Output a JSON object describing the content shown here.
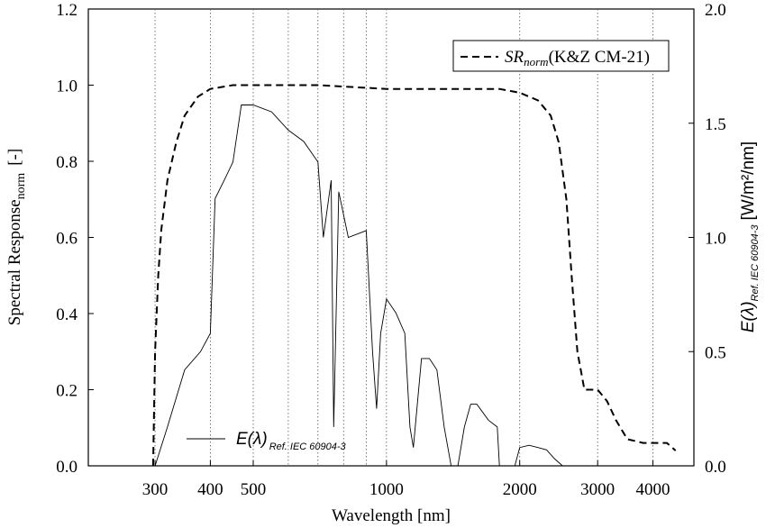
{
  "chart_data": {
    "type": "line",
    "x_log": true,
    "xlabel": "Wavelength [nm]",
    "ylabel": "Spectral Response",
    "ylabel_sub": "norm",
    "ylabel_unit": "[-]",
    "y2label": "E(λ)",
    "y2label_sub": "Ref. IEC 60904-3",
    "y2label_unit": "[W/m²/nm]",
    "xlim": [
      212,
      4950
    ],
    "xticks": [
      300,
      400,
      500,
      1000,
      2000,
      3000,
      4000
    ],
    "x_grid_lines": [
      300,
      400,
      500,
      600,
      700,
      800,
      900,
      1000,
      2000,
      3000,
      4000
    ],
    "ylim": [
      0,
      1.2
    ],
    "yticks": [
      {
        "value": 0,
        "label": "0.0"
      },
      {
        "value": 0.2,
        "label": "0.2"
      },
      {
        "value": 0.4,
        "label": "0.4"
      },
      {
        "value": 0.6,
        "label": "0.6"
      },
      {
        "value": 0.8,
        "label": "0.8"
      },
      {
        "value": 1,
        "label": "1.0"
      },
      {
        "value": 1.2,
        "label": "1.2"
      }
    ],
    "y2lim": [
      0,
      2
    ],
    "y2ticks": [
      {
        "value": 0,
        "label": "0.0"
      },
      {
        "value": 0.5,
        "label": "0.5"
      },
      {
        "value": 1,
        "label": "1.0"
      },
      {
        "value": 1.5,
        "label": "1.5"
      },
      {
        "value": 2,
        "label": "2.0"
      }
    ],
    "series": [
      {
        "name": "SR",
        "name_sub": "norm",
        "name_suffix": "(K&Z CM-21)",
        "color": "#000000",
        "dashed": true,
        "legend": "upper right",
        "x": [
          297,
          300,
          305,
          310,
          320,
          335,
          350,
          375,
          400,
          450,
          500,
          700,
          1000,
          1500,
          1800,
          2000,
          2200,
          2350,
          2450,
          2550,
          2620,
          2700,
          2800,
          3000,
          3150,
          3300,
          3500,
          3800,
          4000,
          4300,
          4500
        ],
        "values": [
          0,
          0.3,
          0.5,
          0.62,
          0.75,
          0.85,
          0.92,
          0.97,
          0.99,
          1.0,
          1.0,
          1.0,
          0.99,
          0.99,
          0.99,
          0.98,
          0.96,
          0.92,
          0.85,
          0.7,
          0.5,
          0.3,
          0.2,
          0.2,
          0.17,
          0.12,
          0.07,
          0.06,
          0.06,
          0.06,
          0.04
        ]
      },
      {
        "name": "E(λ)",
        "name_sub": "Ref. IEC 60904-3",
        "color": "#000000",
        "axis": "y2",
        "legend": "lower left",
        "x": [
          300,
          320,
          350,
          380,
          400,
          410,
          430,
          450,
          470,
          500,
          550,
          600,
          650,
          700,
          720,
          750,
          760,
          780,
          820,
          900,
          930,
          950,
          970,
          1000,
          1050,
          1100,
          1130,
          1150,
          1200,
          1250,
          1300,
          1350,
          1400,
          1450,
          1500,
          1550,
          1600,
          1700,
          1780,
          1800,
          1950,
          2000,
          2100,
          2200,
          2300,
          2400,
          2500
        ],
        "values": [
          0,
          0.17,
          0.42,
          0.5,
          0.58,
          1.17,
          1.25,
          1.33,
          1.58,
          1.58,
          1.55,
          1.47,
          1.42,
          1.33,
          1.0,
          1.25,
          0.17,
          1.2,
          1.0,
          1.03,
          0.5,
          0.25,
          0.58,
          0.73,
          0.67,
          0.58,
          0.17,
          0.08,
          0.47,
          0.47,
          0.42,
          0.17,
          0,
          0,
          0.17,
          0.27,
          0.27,
          0.2,
          0.17,
          0,
          0,
          0.08,
          0.09,
          0.08,
          0.07,
          0.03,
          0
        ]
      }
    ]
  }
}
